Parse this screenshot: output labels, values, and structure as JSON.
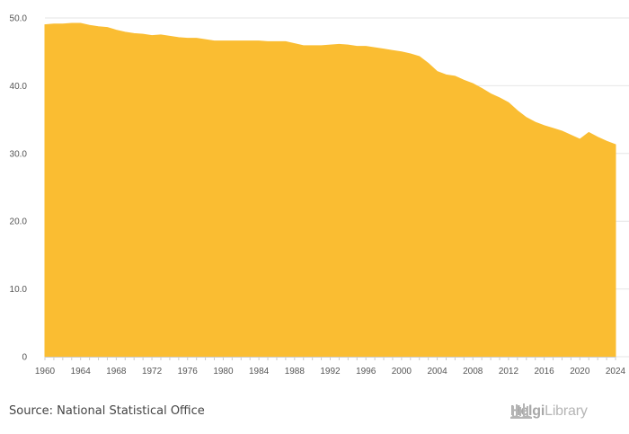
{
  "chart_data": {
    "type": "area",
    "title": "",
    "xlabel": "",
    "ylabel": "",
    "x": [
      1960,
      1961,
      1962,
      1963,
      1964,
      1965,
      1966,
      1967,
      1968,
      1969,
      1970,
      1971,
      1972,
      1973,
      1974,
      1975,
      1976,
      1977,
      1978,
      1979,
      1980,
      1981,
      1982,
      1983,
      1984,
      1985,
      1986,
      1987,
      1988,
      1989,
      1990,
      1991,
      1992,
      1993,
      1994,
      1995,
      1996,
      1997,
      1998,
      1999,
      2000,
      2001,
      2002,
      2003,
      2004,
      2005,
      2006,
      2007,
      2008,
      2009,
      2010,
      2011,
      2012,
      2013,
      2014,
      2015,
      2016,
      2017,
      2018,
      2019,
      2020,
      2021,
      2022,
      2023,
      2024
    ],
    "series": [
      {
        "values": [
          49.0,
          49.1,
          49.1,
          49.2,
          49.2,
          48.9,
          48.7,
          48.6,
          48.2,
          47.9,
          47.7,
          47.6,
          47.4,
          47.5,
          47.3,
          47.1,
          47.0,
          47.0,
          46.8,
          46.6,
          46.6,
          46.6,
          46.6,
          46.6,
          46.6,
          46.5,
          46.5,
          46.5,
          46.2,
          45.9,
          45.9,
          45.9,
          46.0,
          46.1,
          46.0,
          45.8,
          45.8,
          45.6,
          45.4,
          45.2,
          45.0,
          44.7,
          44.3,
          43.3,
          42.1,
          41.6,
          41.4,
          40.8,
          40.3,
          39.6,
          38.8,
          38.2,
          37.5,
          36.3,
          35.3,
          34.6,
          34.1,
          33.7,
          33.3,
          32.7,
          32.1,
          33.1,
          32.4,
          31.8,
          31.3
        ]
      }
    ],
    "ylim": [
      0,
      50
    ],
    "xlim": [
      1960,
      2024
    ],
    "yticks": [
      0,
      10,
      20,
      30,
      40,
      50
    ],
    "ytick_labels": [
      "0",
      "10.0",
      "20.0",
      "30.0",
      "40.0",
      "50.0"
    ],
    "xticks": [
      1960,
      1964,
      1968,
      1972,
      1976,
      1980,
      1984,
      1988,
      1992,
      1996,
      2000,
      2004,
      2008,
      2012,
      2016,
      2020,
      2024
    ],
    "xtick_labels": [
      "1960",
      "1964",
      "1968",
      "1972",
      "1976",
      "1980",
      "1984",
      "1988",
      "1992",
      "1996",
      "2000",
      "2004",
      "2008",
      "2012",
      "2016",
      "2020",
      "2024"
    ],
    "grid": true,
    "legend": "none",
    "fill_color": "#fabd32",
    "grid_color": "#e6e6e6"
  },
  "footer": {
    "source": "Source: National Statistical Office",
    "brand_bold": "Helgi",
    "brand_light": "Library"
  },
  "brand_icon": "helgi-library-logo-icon"
}
